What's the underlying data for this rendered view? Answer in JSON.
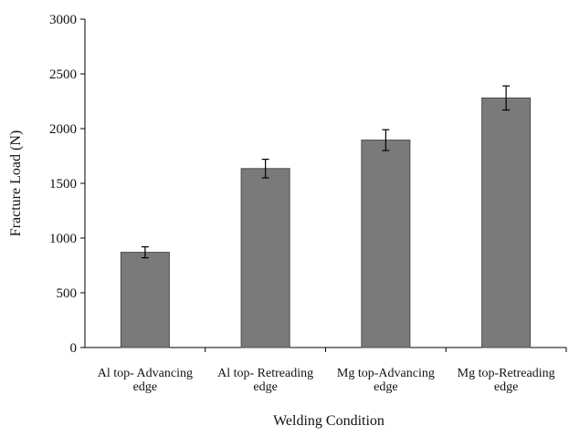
{
  "chart_data": {
    "type": "bar",
    "title": "",
    "xlabel": "Welding Condition",
    "ylabel": "Fracture Load (N)",
    "categories": [
      [
        "Al top- Advancing",
        "edge"
      ],
      [
        "Al top-  Retreading",
        "edge"
      ],
      [
        "Mg top-Advancing",
        "edge"
      ],
      [
        "Mg top-Retreading",
        "edge"
      ]
    ],
    "values": [
      870,
      1635,
      1895,
      2280
    ],
    "error": [
      50,
      85,
      95,
      110
    ],
    "ylim": [
      0,
      3000
    ],
    "yticks": [
      0,
      500,
      1000,
      1500,
      2000,
      2500,
      3000
    ],
    "grid": false,
    "legend": "none",
    "colors": {
      "bar_fill": "#7a7a7a",
      "bar_stroke": "#4a4a4a",
      "axis": "#000000",
      "error_bar": "#000000"
    }
  }
}
